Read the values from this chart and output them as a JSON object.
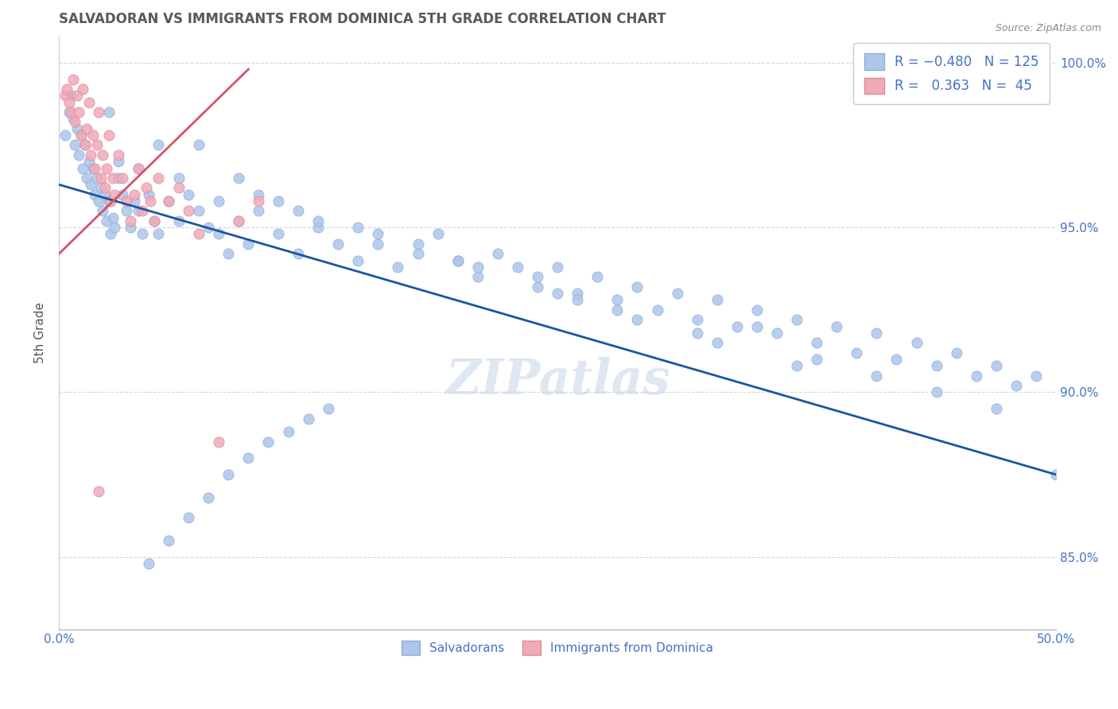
{
  "title": "SALVADORAN VS IMMIGRANTS FROM DOMINICA 5TH GRADE CORRELATION CHART",
  "source_text": "Source: ZipAtlas.com",
  "ylabel": "5th Grade",
  "xlim": [
    0.0,
    0.5
  ],
  "ylim": [
    0.828,
    1.008
  ],
  "y_ticks": [
    0.85,
    0.9,
    0.95,
    1.0
  ],
  "y_tick_labels": [
    "85.0%",
    "90.0%",
    "95.0%",
    "100.0%"
  ],
  "x_ticks": [
    0.0,
    0.1,
    0.2,
    0.3,
    0.4,
    0.5
  ],
  "x_tick_labels": [
    "0.0%",
    "",
    "",
    "",
    "",
    "50.0%"
  ],
  "blue_scatter_x": [
    0.003,
    0.005,
    0.006,
    0.007,
    0.008,
    0.009,
    0.01,
    0.011,
    0.012,
    0.013,
    0.014,
    0.015,
    0.016,
    0.017,
    0.018,
    0.019,
    0.02,
    0.021,
    0.022,
    0.023,
    0.024,
    0.025,
    0.026,
    0.027,
    0.028,
    0.03,
    0.032,
    0.034,
    0.036,
    0.038,
    0.04,
    0.042,
    0.045,
    0.048,
    0.05,
    0.055,
    0.06,
    0.065,
    0.07,
    0.075,
    0.08,
    0.085,
    0.09,
    0.095,
    0.1,
    0.11,
    0.12,
    0.13,
    0.14,
    0.15,
    0.16,
    0.17,
    0.18,
    0.19,
    0.2,
    0.21,
    0.22,
    0.23,
    0.24,
    0.25,
    0.26,
    0.27,
    0.28,
    0.29,
    0.3,
    0.31,
    0.32,
    0.33,
    0.34,
    0.35,
    0.36,
    0.37,
    0.38,
    0.39,
    0.4,
    0.41,
    0.42,
    0.43,
    0.44,
    0.45,
    0.46,
    0.47,
    0.48,
    0.49,
    0.5,
    0.025,
    0.03,
    0.04,
    0.05,
    0.06,
    0.08,
    0.1,
    0.12,
    0.15,
    0.18,
    0.2,
    0.24,
    0.26,
    0.28,
    0.32,
    0.35,
    0.38,
    0.41,
    0.44,
    0.47,
    0.07,
    0.09,
    0.11,
    0.13,
    0.16,
    0.21,
    0.25,
    0.29,
    0.33,
    0.37,
    0.045,
    0.055,
    0.065,
    0.075,
    0.085,
    0.095,
    0.105,
    0.115,
    0.125,
    0.135
  ],
  "blue_scatter_y": [
    0.978,
    0.985,
    0.99,
    0.983,
    0.975,
    0.98,
    0.972,
    0.978,
    0.968,
    0.975,
    0.965,
    0.97,
    0.963,
    0.968,
    0.96,
    0.965,
    0.958,
    0.962,
    0.955,
    0.96,
    0.952,
    0.958,
    0.948,
    0.953,
    0.95,
    0.965,
    0.96,
    0.955,
    0.95,
    0.958,
    0.955,
    0.948,
    0.96,
    0.952,
    0.948,
    0.958,
    0.952,
    0.96,
    0.955,
    0.95,
    0.948,
    0.942,
    0.952,
    0.945,
    0.955,
    0.948,
    0.942,
    0.95,
    0.945,
    0.94,
    0.948,
    0.938,
    0.942,
    0.948,
    0.94,
    0.935,
    0.942,
    0.938,
    0.932,
    0.938,
    0.93,
    0.935,
    0.928,
    0.932,
    0.925,
    0.93,
    0.922,
    0.928,
    0.92,
    0.925,
    0.918,
    0.922,
    0.915,
    0.92,
    0.912,
    0.918,
    0.91,
    0.915,
    0.908,
    0.912,
    0.905,
    0.908,
    0.902,
    0.905,
    0.875,
    0.985,
    0.97,
    0.968,
    0.975,
    0.965,
    0.958,
    0.96,
    0.955,
    0.95,
    0.945,
    0.94,
    0.935,
    0.928,
    0.925,
    0.918,
    0.92,
    0.91,
    0.905,
    0.9,
    0.895,
    0.975,
    0.965,
    0.958,
    0.952,
    0.945,
    0.938,
    0.93,
    0.922,
    0.915,
    0.908,
    0.848,
    0.855,
    0.862,
    0.868,
    0.875,
    0.88,
    0.885,
    0.888,
    0.892,
    0.895
  ],
  "pink_scatter_x": [
    0.003,
    0.004,
    0.005,
    0.006,
    0.007,
    0.008,
    0.009,
    0.01,
    0.011,
    0.012,
    0.013,
    0.014,
    0.015,
    0.016,
    0.017,
    0.018,
    0.019,
    0.02,
    0.021,
    0.022,
    0.023,
    0.024,
    0.025,
    0.026,
    0.027,
    0.028,
    0.03,
    0.032,
    0.034,
    0.036,
    0.038,
    0.04,
    0.042,
    0.044,
    0.046,
    0.048,
    0.05,
    0.055,
    0.06,
    0.065,
    0.07,
    0.08,
    0.09,
    0.1,
    0.02
  ],
  "pink_scatter_y": [
    0.99,
    0.992,
    0.988,
    0.985,
    0.995,
    0.982,
    0.99,
    0.985,
    0.978,
    0.992,
    0.975,
    0.98,
    0.988,
    0.972,
    0.978,
    0.968,
    0.975,
    0.985,
    0.965,
    0.972,
    0.962,
    0.968,
    0.978,
    0.958,
    0.965,
    0.96,
    0.972,
    0.965,
    0.958,
    0.952,
    0.96,
    0.968,
    0.955,
    0.962,
    0.958,
    0.952,
    0.965,
    0.958,
    0.962,
    0.955,
    0.948,
    0.885,
    0.952,
    0.958,
    0.87
  ],
  "blue_line_x": [
    0.0,
    0.5
  ],
  "blue_line_y": [
    0.963,
    0.875
  ],
  "pink_line_x": [
    0.0,
    0.095
  ],
  "pink_line_y": [
    0.942,
    0.998
  ],
  "blue_line_color": "#1a56a0",
  "pink_line_color": "#d9506a",
  "blue_dot_color": "#adc6ea",
  "pink_dot_color": "#f2aab8",
  "dot_edge_color_blue": "#8ab0d8",
  "dot_edge_color_pink": "#e08898",
  "background_color": "#ffffff",
  "grid_color": "#cccccc",
  "axis_color": "#4472c4",
  "title_color": "#595959",
  "watermark_text": "ZIPatlas",
  "watermark_color": "#c8d8ea"
}
